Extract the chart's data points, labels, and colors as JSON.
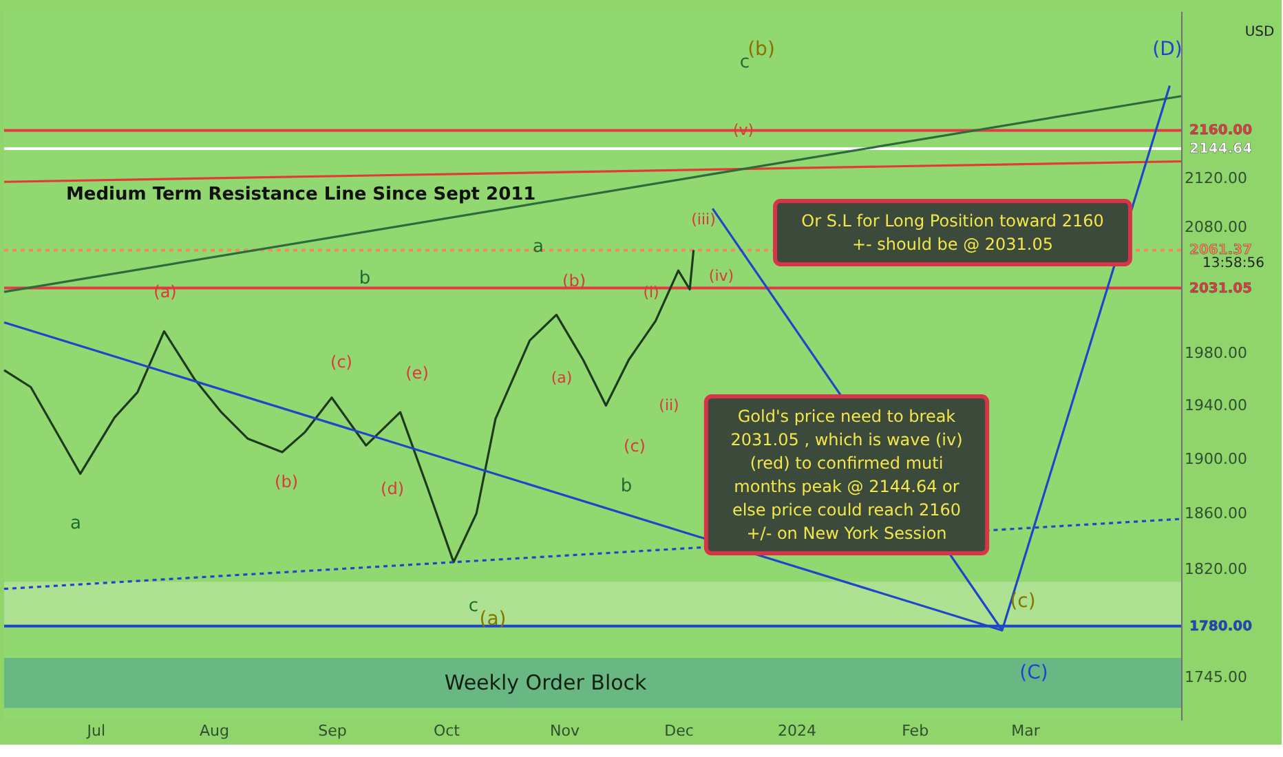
{
  "chart_data": {
    "type": "line",
    "log": "y",
    "grid": false,
    "marker": "none",
    "xlim": [
      "2023-06-07",
      "2024-04-11"
    ],
    "xticks": [
      {
        "value": "2023-07-01",
        "label": "Jul"
      },
      {
        "value": "2023-08-01",
        "label": "Aug"
      },
      {
        "value": "2023-09-01",
        "label": "Sep"
      },
      {
        "value": "2023-10-01",
        "label": "Oct"
      },
      {
        "value": "2023-11-01",
        "label": "Nov"
      },
      {
        "value": "2023-12-01",
        "label": "Dec"
      },
      {
        "value": "2024-01-01",
        "label": "2024"
      },
      {
        "value": "2024-02-01",
        "label": "Feb"
      },
      {
        "value": "2024-03-01",
        "label": "Mar"
      }
    ],
    "ylim": [
      1716,
      2263
    ],
    "yticks": [
      {
        "value": 1745,
        "label": "1745.00"
      },
      {
        "value": 1820,
        "label": "1820.00"
      },
      {
        "value": 1860,
        "label": "1860.00"
      },
      {
        "value": 1900,
        "label": "1900.00"
      },
      {
        "value": 1940,
        "label": "1940.00"
      },
      {
        "value": 1980,
        "label": "1980.00"
      },
      {
        "value": 2080,
        "label": "2080.00"
      },
      {
        "value": 2120,
        "label": "2120.00"
      }
    ],
    "series": [
      {
        "color": "#1e3a1e",
        "line_style": "solid",
        "x": [
          "2023-06-07",
          "2023-06-14",
          "2023-06-27",
          "2023-07-06",
          "2023-07-12",
          "2023-07-19",
          "2023-07-27",
          "2023-08-03",
          "2023-08-10",
          "2023-08-19",
          "2023-08-25",
          "2023-09-01",
          "2023-09-10",
          "2023-09-19",
          "2023-09-26",
          "2023-10-03",
          "2023-10-09",
          "2023-10-14",
          "2023-10-23",
          "2023-10-30",
          "2023-11-06",
          "2023-11-12",
          "2023-11-18",
          "2023-11-25",
          "2023-12-01",
          "2023-12-04",
          "2023-12-05"
        ],
        "values": [
          1967,
          1954,
          1889,
          1931,
          1950,
          1997,
          1960,
          1935,
          1915,
          1905,
          1920,
          1946,
          1910,
          1935,
          1880,
          1825,
          1860,
          1930,
          1990,
          2010,
          1975,
          1940,
          1975,
          2005,
          2045,
          2030,
          2061.37
        ]
      },
      {
        "color": "#e53935",
        "line_style": "solid",
        "x": [
          "2023-06-07",
          "2024-04-11"
        ],
        "values": [
          2117,
          2134
        ]
      },
      {
        "color": "#2e6b3a",
        "line_style": "solid",
        "x": [
          "2023-06-07",
          "2024-04-11"
        ],
        "values": [
          2028,
          2189
        ]
      },
      {
        "color": "#1f45c8",
        "line_style": "solid",
        "x": [
          "2023-06-07",
          "2024-02-24"
        ],
        "values": [
          2004,
          1777
        ]
      },
      {
        "color": "#1f45c8",
        "line_style": "dotted",
        "x": [
          "2023-06-07",
          "2024-04-11"
        ],
        "values": [
          1806,
          1856
        ]
      },
      {
        "color": "#1f45c8",
        "line_style": "solid",
        "x": [
          "2023-12-10",
          "2024-02-24",
          "2024-04-08"
        ],
        "values": [
          2095,
          1777,
          2198
        ]
      }
    ],
    "ref_lines": [
      {
        "axis": "y",
        "value": 2160,
        "label": "2160.00",
        "color": "#e53945",
        "line_style": "solid"
      },
      {
        "axis": "y",
        "value": 2144.64,
        "label": "2144.64",
        "color": "#ffffff",
        "line_style": "solid"
      },
      {
        "axis": "y",
        "value": 2061.37,
        "label": "2061.37",
        "color": "#f08a5d",
        "line_style": "dotted"
      },
      {
        "axis": "y",
        "value": 2031.05,
        "label": "2031.05",
        "color": "#e53945",
        "line_style": "solid"
      },
      {
        "axis": "y",
        "value": 1780,
        "label": "1780.00",
        "color": "#1f45c8",
        "line_style": "solid"
      }
    ],
    "bands": [
      {
        "axis": "y",
        "from": 1780,
        "to": 1811,
        "color": "#b5e59b"
      },
      {
        "axis": "y",
        "from": 1724,
        "to": 1758,
        "label": "Weekly Order Block",
        "color": "#5fb08a"
      }
    ],
    "annotations": [
      "USD",
      "13:58:56",
      "Or S.L for Long Position toward 2160\n+- should be @ 2031.05",
      "Gold's price need to break\n2031.05 , which is wave (iv)\n(red) to confirmed muti\nmonths peak @ 2144.64 or\nelse price could reach 2160\n+/- on New York Session",
      "Medium Term Resistance Line Since Sept 2011",
      "(a)",
      "(b)",
      "(c)",
      "(d)",
      "(e)",
      "a",
      "b",
      "c",
      "(a)",
      "a",
      "(b)",
      "(a)",
      "(c)",
      "b",
      "(i)",
      "(ii)",
      "(iii)",
      "(iv)",
      "(v)",
      "c",
      "(b)",
      "(c)",
      "(C)",
      "(D)"
    ]
  }
}
